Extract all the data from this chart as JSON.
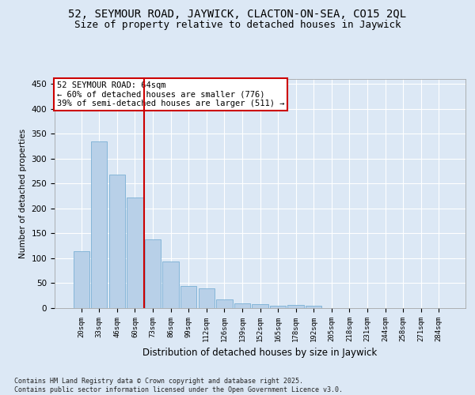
{
  "title1": "52, SEYMOUR ROAD, JAYWICK, CLACTON-ON-SEA, CO15 2QL",
  "title2": "Size of property relative to detached houses in Jaywick",
  "xlabel": "Distribution of detached houses by size in Jaywick",
  "ylabel": "Number of detached properties",
  "categories": [
    "20sqm",
    "33sqm",
    "46sqm",
    "60sqm",
    "73sqm",
    "86sqm",
    "99sqm",
    "112sqm",
    "126sqm",
    "139sqm",
    "152sqm",
    "165sqm",
    "178sqm",
    "192sqm",
    "205sqm",
    "218sqm",
    "231sqm",
    "244sqm",
    "258sqm",
    "271sqm",
    "284sqm"
  ],
  "values": [
    115,
    335,
    268,
    222,
    138,
    93,
    44,
    40,
    18,
    10,
    8,
    5,
    6,
    5,
    0,
    0,
    0,
    0,
    0,
    0,
    0
  ],
  "bar_color": "#b8d0e8",
  "bar_edgecolor": "#7aafd4",
  "vline_x": 3.5,
  "annotation_text": "52 SEYMOUR ROAD: 64sqm\n← 60% of detached houses are smaller (776)\n39% of semi-detached houses are larger (511) →",
  "annotation_box_color": "#ffffff",
  "annotation_box_edgecolor": "#cc0000",
  "annotation_fontsize": 7.5,
  "vline_color": "#cc0000",
  "background_color": "#dce8f5",
  "plot_background": "#dce8f5",
  "grid_color": "#ffffff",
  "ylim": [
    0,
    460
  ],
  "yticks": [
    0,
    50,
    100,
    150,
    200,
    250,
    300,
    350,
    400,
    450
  ],
  "footer_text": "Contains HM Land Registry data © Crown copyright and database right 2025.\nContains public sector information licensed under the Open Government Licence v3.0.",
  "title_fontsize": 10,
  "subtitle_fontsize": 9
}
